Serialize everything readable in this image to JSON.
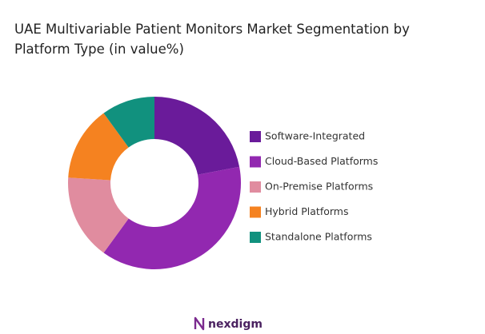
{
  "chart_data": {
    "type": "donut",
    "title": "UAE Multivariable Patient Monitors Market Segmentation by Platform Type (in value%)",
    "categories": [
      "Software-Integrated",
      "Cloud-Based Platforms",
      "On-Premise Platforms",
      "Hybrid Platforms",
      "Standalone Platforms"
    ],
    "values": [
      22,
      38,
      16,
      14,
      10
    ],
    "colors": [
      "#6a1b9a",
      "#9228b0",
      "#e08c9f",
      "#f58220",
      "#11917e"
    ],
    "legend": "right"
  },
  "footer": {
    "logo_text": "nexdigm"
  }
}
